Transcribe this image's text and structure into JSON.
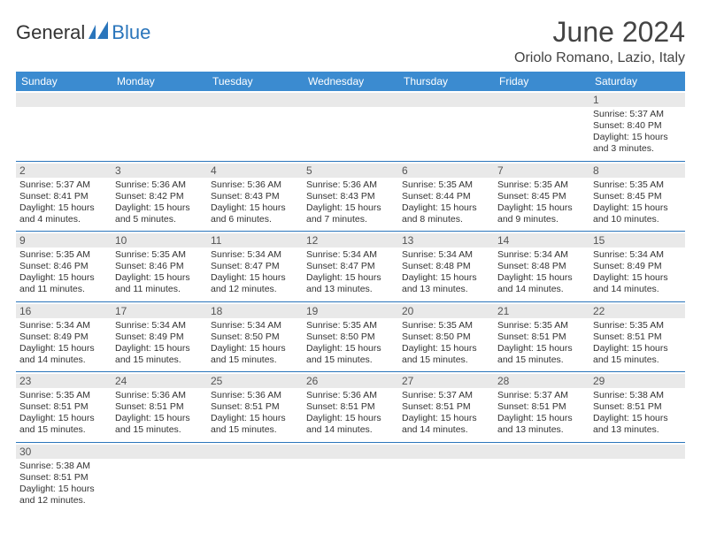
{
  "logo": {
    "part1": "General",
    "part2": "Blue"
  },
  "title": "June 2024",
  "location": "Oriolo Romano, Lazio, Italy",
  "colors": {
    "header_bg": "#3b8bd0",
    "header_text": "#ffffff",
    "border": "#2a75bb",
    "daynum_bg": "#e9e9e9",
    "logo_blue": "#2a75bb"
  },
  "daynames": [
    "Sunday",
    "Monday",
    "Tuesday",
    "Wednesday",
    "Thursday",
    "Friday",
    "Saturday"
  ],
  "weeks": [
    [
      {
        "n": "",
        "sr": "",
        "ss": "",
        "dl": ""
      },
      {
        "n": "",
        "sr": "",
        "ss": "",
        "dl": ""
      },
      {
        "n": "",
        "sr": "",
        "ss": "",
        "dl": ""
      },
      {
        "n": "",
        "sr": "",
        "ss": "",
        "dl": ""
      },
      {
        "n": "",
        "sr": "",
        "ss": "",
        "dl": ""
      },
      {
        "n": "",
        "sr": "",
        "ss": "",
        "dl": ""
      },
      {
        "n": "1",
        "sr": "Sunrise: 5:37 AM",
        "ss": "Sunset: 8:40 PM",
        "dl": "Daylight: 15 hours and 3 minutes."
      }
    ],
    [
      {
        "n": "2",
        "sr": "Sunrise: 5:37 AM",
        "ss": "Sunset: 8:41 PM",
        "dl": "Daylight: 15 hours and 4 minutes."
      },
      {
        "n": "3",
        "sr": "Sunrise: 5:36 AM",
        "ss": "Sunset: 8:42 PM",
        "dl": "Daylight: 15 hours and 5 minutes."
      },
      {
        "n": "4",
        "sr": "Sunrise: 5:36 AM",
        "ss": "Sunset: 8:43 PM",
        "dl": "Daylight: 15 hours and 6 minutes."
      },
      {
        "n": "5",
        "sr": "Sunrise: 5:36 AM",
        "ss": "Sunset: 8:43 PM",
        "dl": "Daylight: 15 hours and 7 minutes."
      },
      {
        "n": "6",
        "sr": "Sunrise: 5:35 AM",
        "ss": "Sunset: 8:44 PM",
        "dl": "Daylight: 15 hours and 8 minutes."
      },
      {
        "n": "7",
        "sr": "Sunrise: 5:35 AM",
        "ss": "Sunset: 8:45 PM",
        "dl": "Daylight: 15 hours and 9 minutes."
      },
      {
        "n": "8",
        "sr": "Sunrise: 5:35 AM",
        "ss": "Sunset: 8:45 PM",
        "dl": "Daylight: 15 hours and 10 minutes."
      }
    ],
    [
      {
        "n": "9",
        "sr": "Sunrise: 5:35 AM",
        "ss": "Sunset: 8:46 PM",
        "dl": "Daylight: 15 hours and 11 minutes."
      },
      {
        "n": "10",
        "sr": "Sunrise: 5:35 AM",
        "ss": "Sunset: 8:46 PM",
        "dl": "Daylight: 15 hours and 11 minutes."
      },
      {
        "n": "11",
        "sr": "Sunrise: 5:34 AM",
        "ss": "Sunset: 8:47 PM",
        "dl": "Daylight: 15 hours and 12 minutes."
      },
      {
        "n": "12",
        "sr": "Sunrise: 5:34 AM",
        "ss": "Sunset: 8:47 PM",
        "dl": "Daylight: 15 hours and 13 minutes."
      },
      {
        "n": "13",
        "sr": "Sunrise: 5:34 AM",
        "ss": "Sunset: 8:48 PM",
        "dl": "Daylight: 15 hours and 13 minutes."
      },
      {
        "n": "14",
        "sr": "Sunrise: 5:34 AM",
        "ss": "Sunset: 8:48 PM",
        "dl": "Daylight: 15 hours and 14 minutes."
      },
      {
        "n": "15",
        "sr": "Sunrise: 5:34 AM",
        "ss": "Sunset: 8:49 PM",
        "dl": "Daylight: 15 hours and 14 minutes."
      }
    ],
    [
      {
        "n": "16",
        "sr": "Sunrise: 5:34 AM",
        "ss": "Sunset: 8:49 PM",
        "dl": "Daylight: 15 hours and 14 minutes."
      },
      {
        "n": "17",
        "sr": "Sunrise: 5:34 AM",
        "ss": "Sunset: 8:49 PM",
        "dl": "Daylight: 15 hours and 15 minutes."
      },
      {
        "n": "18",
        "sr": "Sunrise: 5:34 AM",
        "ss": "Sunset: 8:50 PM",
        "dl": "Daylight: 15 hours and 15 minutes."
      },
      {
        "n": "19",
        "sr": "Sunrise: 5:35 AM",
        "ss": "Sunset: 8:50 PM",
        "dl": "Daylight: 15 hours and 15 minutes."
      },
      {
        "n": "20",
        "sr": "Sunrise: 5:35 AM",
        "ss": "Sunset: 8:50 PM",
        "dl": "Daylight: 15 hours and 15 minutes."
      },
      {
        "n": "21",
        "sr": "Sunrise: 5:35 AM",
        "ss": "Sunset: 8:51 PM",
        "dl": "Daylight: 15 hours and 15 minutes."
      },
      {
        "n": "22",
        "sr": "Sunrise: 5:35 AM",
        "ss": "Sunset: 8:51 PM",
        "dl": "Daylight: 15 hours and 15 minutes."
      }
    ],
    [
      {
        "n": "23",
        "sr": "Sunrise: 5:35 AM",
        "ss": "Sunset: 8:51 PM",
        "dl": "Daylight: 15 hours and 15 minutes."
      },
      {
        "n": "24",
        "sr": "Sunrise: 5:36 AM",
        "ss": "Sunset: 8:51 PM",
        "dl": "Daylight: 15 hours and 15 minutes."
      },
      {
        "n": "25",
        "sr": "Sunrise: 5:36 AM",
        "ss": "Sunset: 8:51 PM",
        "dl": "Daylight: 15 hours and 15 minutes."
      },
      {
        "n": "26",
        "sr": "Sunrise: 5:36 AM",
        "ss": "Sunset: 8:51 PM",
        "dl": "Daylight: 15 hours and 14 minutes."
      },
      {
        "n": "27",
        "sr": "Sunrise: 5:37 AM",
        "ss": "Sunset: 8:51 PM",
        "dl": "Daylight: 15 hours and 14 minutes."
      },
      {
        "n": "28",
        "sr": "Sunrise: 5:37 AM",
        "ss": "Sunset: 8:51 PM",
        "dl": "Daylight: 15 hours and 13 minutes."
      },
      {
        "n": "29",
        "sr": "Sunrise: 5:38 AM",
        "ss": "Sunset: 8:51 PM",
        "dl": "Daylight: 15 hours and 13 minutes."
      }
    ],
    [
      {
        "n": "30",
        "sr": "Sunrise: 5:38 AM",
        "ss": "Sunset: 8:51 PM",
        "dl": "Daylight: 15 hours and 12 minutes."
      },
      {
        "n": "",
        "sr": "",
        "ss": "",
        "dl": ""
      },
      {
        "n": "",
        "sr": "",
        "ss": "",
        "dl": ""
      },
      {
        "n": "",
        "sr": "",
        "ss": "",
        "dl": ""
      },
      {
        "n": "",
        "sr": "",
        "ss": "",
        "dl": ""
      },
      {
        "n": "",
        "sr": "",
        "ss": "",
        "dl": ""
      },
      {
        "n": "",
        "sr": "",
        "ss": "",
        "dl": ""
      }
    ]
  ]
}
